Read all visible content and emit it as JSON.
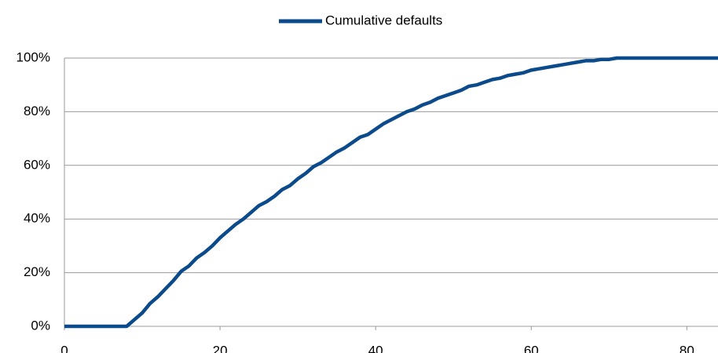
{
  "chart_data": {
    "type": "line",
    "x": [
      0,
      8,
      9,
      10,
      11,
      12,
      13,
      14,
      15,
      16,
      17,
      18,
      19,
      20,
      21,
      22,
      23,
      24,
      25,
      26,
      27,
      28,
      29,
      30,
      31,
      32,
      33,
      34,
      35,
      36,
      37,
      38,
      39,
      40,
      41,
      42,
      43,
      44,
      45,
      46,
      47,
      48,
      49,
      50,
      51,
      52,
      53,
      54,
      55,
      56,
      57,
      58,
      59,
      60,
      61,
      62,
      63,
      64,
      65,
      66,
      67,
      68,
      69,
      70,
      71,
      72,
      73,
      74,
      75,
      76,
      77,
      78,
      79,
      80,
      81,
      82,
      83,
      84
    ],
    "series": [
      {
        "name": "Cumulative defaults",
        "color": "#0b4a8b",
        "values": [
          0,
          0,
          2.5,
          5,
          8.5,
          11,
          14,
          17,
          20.5,
          22.5,
          25.5,
          27.5,
          30,
          33,
          35.5,
          38,
          40,
          42.5,
          45,
          46.5,
          48.5,
          51,
          52.5,
          55,
          57,
          59.5,
          61,
          63,
          65,
          66.5,
          68.5,
          70.5,
          71.5,
          73.5,
          75.5,
          77,
          78.5,
          80,
          81,
          82.5,
          83.5,
          85,
          86,
          87,
          88,
          89.5,
          90,
          91,
          92,
          92.5,
          93.5,
          94,
          94.5,
          95.5,
          96,
          96.5,
          97,
          97.5,
          98,
          98.5,
          99,
          99,
          99.5,
          99.5,
          100,
          100,
          100,
          100,
          100,
          100,
          100,
          100,
          100,
          100,
          100,
          100,
          100,
          100
        ]
      }
    ],
    "xlim": [
      0,
      84
    ],
    "xticks": [
      0,
      20,
      40,
      60,
      80
    ],
    "ylim": [
      0,
      100
    ],
    "yticks": [
      {
        "value": 0,
        "label": "0%"
      },
      {
        "value": 20,
        "label": "20%"
      },
      {
        "value": 40,
        "label": "40%"
      },
      {
        "value": 60,
        "label": "60%"
      },
      {
        "value": 80,
        "label": "80%"
      },
      {
        "value": 100,
        "label": "100%"
      }
    ],
    "grid": true
  }
}
